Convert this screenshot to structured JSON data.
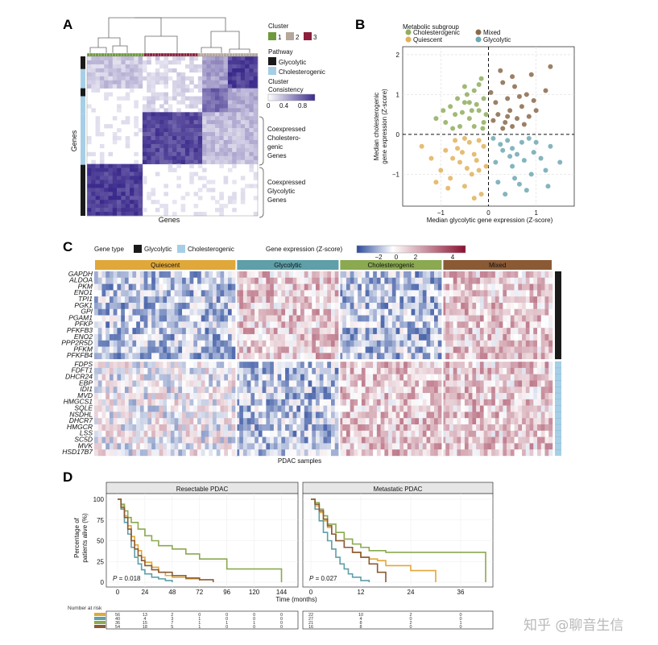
{
  "panels": {
    "a": "A",
    "b": "B",
    "c": "C",
    "d": "D"
  },
  "panel_a": {
    "ylabel": "Genes",
    "xlabel": "Genes",
    "legend_cluster_title": "Cluster",
    "clusters": [
      {
        "label": "1",
        "color": "#6e9a3c"
      },
      {
        "label": "2",
        "color": "#b5a79b"
      },
      {
        "label": "3",
        "color": "#8c1f3c"
      }
    ],
    "legend_pathway_title": "Pathway",
    "pathways": [
      {
        "label": "Glycolytic",
        "color": "#1a1a1a"
      },
      {
        "label": "Cholesterogenic",
        "color": "#a6cfe6"
      }
    ],
    "legend_consistency_title": "Cluster",
    "legend_consistency_title2": "Consistency",
    "consistency_ticks": [
      "0",
      "0.4",
      "0.8"
    ],
    "annotation_chol": [
      "Coexpressed",
      "Cholestero-",
      "genic",
      "Genes"
    ],
    "annotation_gly": [
      "Coexpressed",
      "Glycolytic",
      "Genes"
    ]
  },
  "panel_b": {
    "legend_title": "Metabolic subgroup",
    "subgroups": [
      {
        "label": "Cholesterogenic",
        "color": "#8fae5e"
      },
      {
        "label": "Mixed",
        "color": "#8a6a4b"
      },
      {
        "label": "Quiescent",
        "color": "#e0b15a"
      },
      {
        "label": "Glycolytic",
        "color": "#6fa8b3"
      }
    ],
    "xlabel": "Median glycolytic gene expression (Z-score)",
    "ylabel_line1": "Median cholesterogenic",
    "ylabel_line2": "gene expression (Z-score)",
    "xticks": [
      "−1",
      "0",
      "1"
    ],
    "yticks": [
      "2",
      "1",
      "0",
      "−1"
    ]
  },
  "panel_c": {
    "legend_gene_type": "Gene type",
    "gene_types": [
      {
        "label": "Glycolytic",
        "color": "#1a1a1a"
      },
      {
        "label": "Cholesterogenic",
        "color": "#a6cfe6"
      }
    ],
    "legend_expr_title": "Gene expression (Z-score)",
    "expr_ticks": [
      "−2",
      "0",
      "2",
      "4"
    ],
    "groups": [
      {
        "label": "Quiescent",
        "color": "#e0a83a"
      },
      {
        "label": "Glycolytic",
        "color": "#5e9fa8"
      },
      {
        "label": "Cholesterogenic",
        "color": "#8aa950"
      },
      {
        "label": "Mixed",
        "color": "#8a5a35"
      }
    ],
    "glycolytic_genes": [
      "GAPDH",
      "ALDOA",
      "PKM",
      "ENO1",
      "TPI1",
      "PGK1",
      "GPI",
      "PGAM1",
      "PFKP",
      "PFKFB3",
      "ENO2",
      "PPP2R5D",
      "PFKM",
      "PFKFB4"
    ],
    "cholesterogenic_genes": [
      "FDPS",
      "FDFT1",
      "DHCR24",
      "EBP",
      "IDI1",
      "MVD",
      "HMGCS1",
      "SQLE",
      "NSDHL",
      "DHCR7",
      "HMGCR",
      "LSS",
      "SC5D",
      "MVK",
      "HSD17B7"
    ],
    "xlabel": "PDAC samples"
  },
  "panel_d": {
    "ylabel_line1": "Percentage of",
    "ylabel_line2": "patients alive (%)",
    "xlabel": "Time (months)",
    "risk_title": "Number at risk",
    "left": {
      "title": "Resectable PDAC",
      "pvalue_prefix": "P",
      "pvalue": " = 0.018",
      "xticks": [
        "0",
        "24",
        "48",
        "72",
        "96",
        "120",
        "144"
      ],
      "yticks": [
        "100",
        "75",
        "50",
        "25",
        "0"
      ],
      "risk_rows": [
        [
          "56",
          "13",
          "2",
          "0",
          "0",
          "0",
          "0"
        ],
        [
          "40",
          "4",
          "3",
          "1",
          "0",
          "0",
          "0"
        ],
        [
          "36",
          "15",
          "7",
          "1",
          "1",
          "1",
          "0"
        ],
        [
          "54",
          "18",
          "5",
          "1",
          "0",
          "0",
          "0"
        ]
      ]
    },
    "right": {
      "title": "Metastatic PDAC",
      "pvalue_prefix": "P",
      "pvalue": " = 0.027",
      "xticks": [
        "0",
        "12",
        "24",
        "36"
      ],
      "risk_rows": [
        [
          "22",
          "10",
          "2",
          "0"
        ],
        [
          "27",
          "4",
          "0",
          "0"
        ],
        [
          "21",
          "8",
          "2",
          "1"
        ],
        [
          "16",
          "8",
          "0",
          "0"
        ]
      ]
    }
  },
  "watermark": "知乎 @聊音生信",
  "chart_data": [
    {
      "type": "heatmap",
      "title": "",
      "xlabel": "Genes",
      "ylabel": "Genes",
      "clusters": [
        "1",
        "2",
        "3"
      ],
      "colorbar": {
        "title": "Cluster Consistency",
        "range": [
          0,
          1
        ],
        "ticks": [
          0,
          0.4,
          0.8
        ]
      }
    },
    {
      "type": "scatter",
      "xlabel": "Median glycolytic gene expression (Z-score)",
      "ylabel": "Median cholesterogenic gene expression (Z-score)",
      "xlim": [
        -1.8,
        1.8
      ],
      "ylim": [
        -1.8,
        2.2
      ],
      "reference_lines": {
        "x": 0,
        "y": 0
      },
      "series": [
        {
          "name": "Cholesterogenic",
          "points": [
            [
              -0.9,
              0.3
            ],
            [
              -0.7,
              0.5
            ],
            [
              -0.5,
              0.8
            ],
            [
              -0.3,
              1.1
            ],
            [
              -0.2,
              0.6
            ],
            [
              -0.1,
              0.9
            ],
            [
              -0.6,
              0.2
            ],
            [
              -0.4,
              0.4
            ],
            [
              -0.8,
              0.7
            ],
            [
              -0.3,
              0.2
            ],
            [
              -0.15,
              1.4
            ],
            [
              -0.05,
              0.5
            ],
            [
              -1.1,
              0.4
            ],
            [
              -0.5,
              1.2
            ],
            [
              -0.25,
              0.75
            ],
            [
              -0.65,
              0.9
            ],
            [
              -0.35,
              0.6
            ],
            [
              -0.1,
              0.3
            ],
            [
              -0.45,
              1.0
            ],
            [
              -0.75,
              0.15
            ],
            [
              -0.2,
              1.25
            ],
            [
              -0.55,
              0.55
            ],
            [
              -0.95,
              0.6
            ],
            [
              -0.12,
              0.15
            ],
            [
              -0.4,
              0.8
            ]
          ]
        },
        {
          "name": "Mixed",
          "points": [
            [
              0.2,
              0.5
            ],
            [
              0.4,
              0.9
            ],
            [
              0.6,
              0.4
            ],
            [
              0.8,
              1.0
            ],
            [
              0.3,
              1.3
            ],
            [
              0.5,
              0.2
            ],
            [
              0.7,
              0.7
            ],
            [
              0.9,
              1.5
            ],
            [
              0.15,
              0.8
            ],
            [
              0.35,
              0.3
            ],
            [
              1.0,
              0.6
            ],
            [
              0.55,
              1.2
            ],
            [
              0.25,
              1.6
            ],
            [
              0.75,
              0.25
            ],
            [
              0.45,
              0.6
            ],
            [
              1.2,
              1.1
            ],
            [
              0.65,
              0.95
            ],
            [
              0.1,
              0.35
            ],
            [
              0.85,
              0.45
            ],
            [
              0.3,
              0.15
            ],
            [
              1.3,
              1.7
            ],
            [
              0.05,
              1.05
            ],
            [
              0.5,
              1.45
            ],
            [
              0.95,
              0.85
            ],
            [
              0.4,
              0.45
            ]
          ]
        },
        {
          "name": "Quiescent",
          "points": [
            [
              -0.9,
              -0.4
            ],
            [
              -0.6,
              -0.7
            ],
            [
              -0.4,
              -0.2
            ],
            [
              -0.2,
              -0.9
            ],
            [
              -0.8,
              -1.1
            ],
            [
              -0.3,
              -0.5
            ],
            [
              -1.2,
              -0.6
            ],
            [
              -0.5,
              -1.3
            ],
            [
              -0.1,
              -0.3
            ],
            [
              -0.7,
              -0.15
            ],
            [
              -1.0,
              -0.9
            ],
            [
              -0.35,
              -1.0
            ],
            [
              -0.15,
              -1.5
            ],
            [
              -0.55,
              -0.45
            ],
            [
              -1.4,
              -0.3
            ],
            [
              -0.25,
              -0.65
            ],
            [
              -0.85,
              -1.35
            ],
            [
              -0.45,
              -0.85
            ],
            [
              -0.05,
              -0.8
            ],
            [
              -1.1,
              -1.2
            ],
            [
              -0.65,
              -0.35
            ],
            [
              -0.3,
              -1.6
            ],
            [
              -0.75,
              -0.6
            ],
            [
              -0.2,
              -0.15
            ],
            [
              -0.5,
              -0.1
            ]
          ]
        },
        {
          "name": "Glycolytic",
          "points": [
            [
              0.3,
              -0.4
            ],
            [
              0.5,
              -0.8
            ],
            [
              0.7,
              -0.2
            ],
            [
              0.9,
              -1.0
            ],
            [
              0.2,
              -1.2
            ],
            [
              0.6,
              -0.5
            ],
            [
              1.1,
              -0.6
            ],
            [
              0.4,
              -0.15
            ],
            [
              0.8,
              -1.4
            ],
            [
              1.3,
              -0.3
            ],
            [
              0.15,
              -0.7
            ],
            [
              1.0,
              -0.2
            ],
            [
              0.55,
              -1.1
            ],
            [
              0.35,
              -1.5
            ],
            [
              1.2,
              -0.9
            ],
            [
              0.75,
              -0.65
            ],
            [
              0.25,
              -0.25
            ],
            [
              0.95,
              -0.45
            ],
            [
              1.5,
              -0.7
            ],
            [
              0.45,
              -0.55
            ],
            [
              0.65,
              -1.25
            ],
            [
              0.1,
              -0.1
            ],
            [
              0.85,
              -0.1
            ],
            [
              1.25,
              -1.3
            ],
            [
              0.5,
              -0.35
            ]
          ]
        }
      ]
    },
    {
      "type": "heatmap",
      "xlabel": "PDAC samples",
      "colorbar": {
        "title": "Gene expression (Z-score)",
        "ticks": [
          -2,
          0,
          2,
          4
        ]
      },
      "column_groups": [
        "Quiescent",
        "Glycolytic",
        "Cholesterogenic",
        "Mixed"
      ],
      "row_groups": {
        "Glycolytic": 14,
        "Cholesterogenic": 15
      },
      "group_pattern": {
        "Quiescent": {
          "glycolytic": "low",
          "cholesterogenic": "mixed"
        },
        "Glycolytic": {
          "glycolytic": "high",
          "cholesterogenic": "low"
        },
        "Cholesterogenic": {
          "glycolytic": "low",
          "cholesterogenic": "high"
        },
        "Mixed": {
          "glycolytic": "high",
          "cholesterogenic": "high"
        }
      }
    },
    {
      "type": "line",
      "title": "Resectable PDAC",
      "xlabel": "Time (months)",
      "ylabel": "Percentage of patients alive (%)",
      "xlim": [
        0,
        150
      ],
      "ylim": [
        0,
        100
      ],
      "annotation": "P = 0.018",
      "series": [
        {
          "color": "#e0a83a",
          "x": [
            0,
            3,
            6,
            9,
            12,
            15,
            18,
            21,
            24,
            30,
            36,
            42,
            48,
            60,
            72
          ],
          "y": [
            100,
            92,
            80,
            68,
            55,
            45,
            38,
            30,
            24,
            18,
            12,
            8,
            6,
            4,
            2
          ]
        },
        {
          "color": "#5e9fa8",
          "x": [
            0,
            3,
            6,
            9,
            12,
            15,
            18,
            21,
            24,
            30,
            36,
            42,
            48
          ],
          "y": [
            100,
            88,
            72,
            58,
            42,
            30,
            22,
            15,
            10,
            6,
            4,
            2,
            0
          ]
        },
        {
          "color": "#8aa950",
          "x": [
            0,
            3,
            6,
            9,
            12,
            18,
            24,
            30,
            36,
            48,
            60,
            72,
            96,
            120,
            144
          ],
          "y": [
            100,
            94,
            86,
            78,
            72,
            64,
            56,
            50,
            44,
            40,
            34,
            28,
            16,
            16,
            0
          ]
        },
        {
          "color": "#8a5a35",
          "x": [
            0,
            3,
            6,
            9,
            12,
            15,
            18,
            21,
            24,
            30,
            36,
            48,
            60,
            72,
            84
          ],
          "y": [
            100,
            90,
            78,
            64,
            50,
            40,
            32,
            26,
            20,
            15,
            12,
            8,
            5,
            3,
            0
          ]
        }
      ]
    },
    {
      "type": "line",
      "title": "Metastatic PDAC",
      "xlabel": "Time (months)",
      "ylabel": "Percentage of patients alive (%)",
      "xlim": [
        0,
        42
      ],
      "ylim": [
        0,
        100
      ],
      "annotation": "P = 0.027",
      "series": [
        {
          "color": "#e0a83a",
          "x": [
            0,
            1,
            2,
            3,
            4,
            5,
            6,
            8,
            10,
            12,
            14,
            16,
            18,
            24,
            30
          ],
          "y": [
            100,
            92,
            84,
            74,
            66,
            58,
            50,
            42,
            36,
            30,
            28,
            26,
            20,
            14,
            0
          ]
        },
        {
          "color": "#5e9fa8",
          "x": [
            0,
            1,
            2,
            3,
            4,
            5,
            6,
            7,
            8,
            9,
            10,
            12,
            14
          ],
          "y": [
            100,
            88,
            74,
            60,
            50,
            40,
            30,
            22,
            16,
            10,
            6,
            2,
            0
          ]
        },
        {
          "color": "#8aa950",
          "x": [
            0,
            1,
            2,
            3,
            4,
            6,
            8,
            10,
            12,
            14,
            18,
            24,
            30,
            36,
            42
          ],
          "y": [
            100,
            96,
            88,
            80,
            70,
            60,
            52,
            46,
            42,
            38,
            36,
            36,
            36,
            36,
            0
          ]
        },
        {
          "color": "#8a5a35",
          "x": [
            0,
            1,
            2,
            3,
            4,
            5,
            6,
            8,
            10,
            12,
            14,
            16,
            18
          ],
          "y": [
            100,
            94,
            86,
            76,
            68,
            58,
            50,
            42,
            36,
            30,
            22,
            12,
            0
          ]
        }
      ]
    }
  ]
}
